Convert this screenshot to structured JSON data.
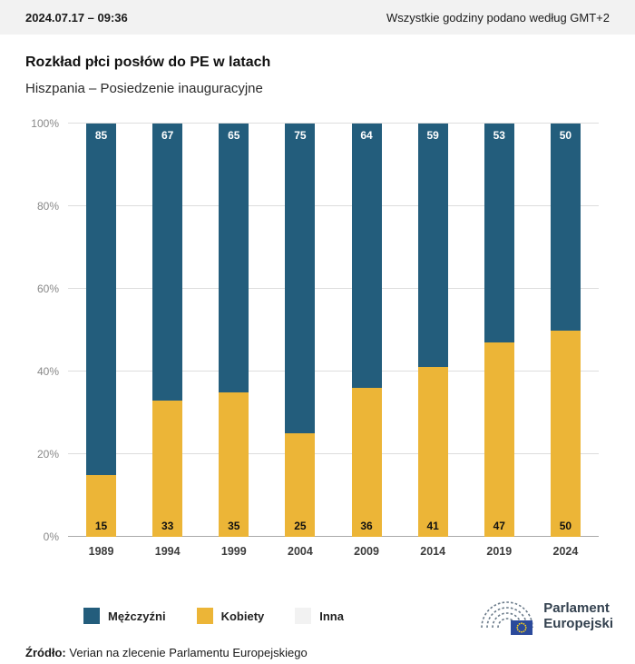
{
  "topbar": {
    "datetime": "2024.07.17 – 09:36",
    "note": "Wszystkie godziny podano według GMT+2"
  },
  "header": {
    "title": "Rozkład płci posłów do PE w latach",
    "subtitle": "Hiszpania – Posiedzenie inauguracyjne"
  },
  "chart_data": {
    "type": "bar",
    "stacked": true,
    "title": "Rozkład płci posłów do PE w latach",
    "subtitle": "Hiszpania – Posiedzenie inauguracyjne",
    "categories": [
      "1989",
      "1994",
      "1999",
      "2004",
      "2009",
      "2014",
      "2019",
      "2024"
    ],
    "series": [
      {
        "name": "Mężczyźni",
        "color": "#235d7c",
        "values": [
          85,
          67,
          65,
          75,
          64,
          59,
          53,
          50
        ]
      },
      {
        "name": "Kobiety",
        "color": "#ecb537",
        "values": [
          15,
          33,
          35,
          25,
          36,
          41,
          47,
          50
        ]
      },
      {
        "name": "Inna",
        "color": "#f2f2f2",
        "values": [
          0,
          0,
          0,
          0,
          0,
          0,
          0,
          0
        ]
      }
    ],
    "ylim": [
      0,
      100
    ],
    "yticks": [
      "0%",
      "20%",
      "40%",
      "60%",
      "80%",
      "100%"
    ],
    "grid": true,
    "legend_position": "bottom"
  },
  "footer": {
    "logo_line1": "Parlament",
    "logo_line2": "Europejski",
    "source_label": "Źródło:",
    "source_text": "Verian na zlecenie Parlamentu Europejskiego"
  }
}
